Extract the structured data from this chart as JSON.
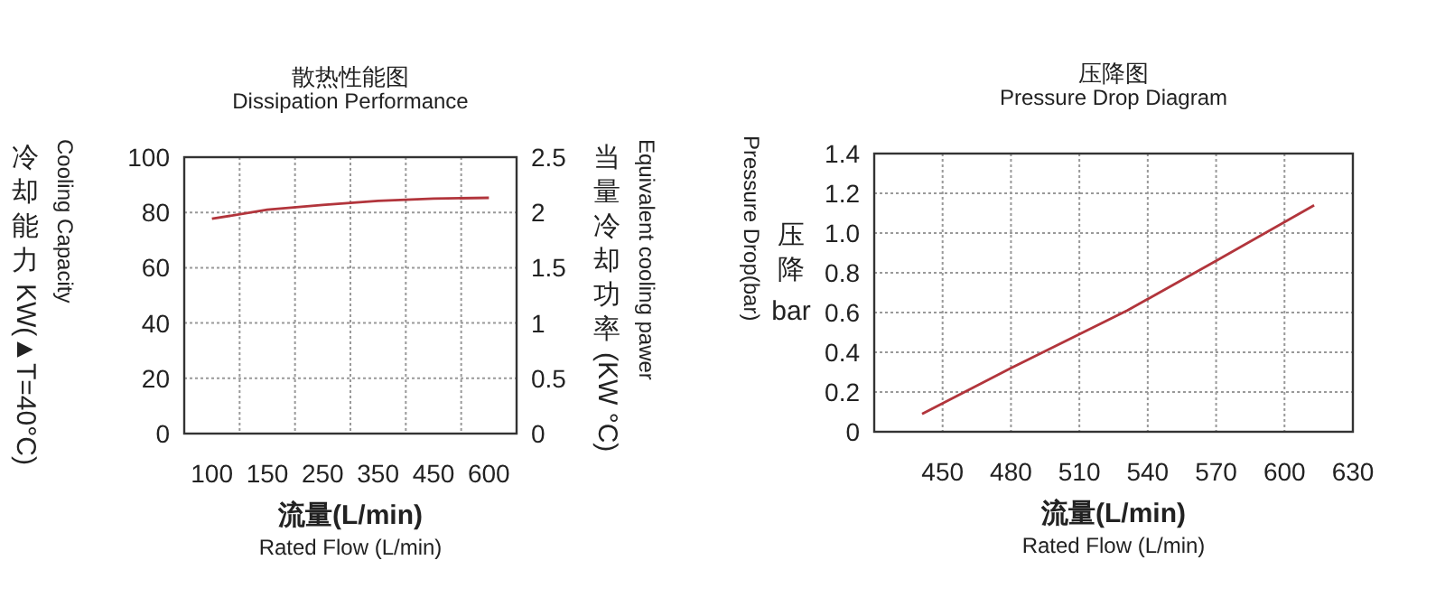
{
  "chart_data": [
    {
      "type": "line",
      "title": "散热性能图",
      "subtitle": "Dissipation Performance",
      "xlabel": "流量(L/min)\nRated Flow (L/min)",
      "ylabel": "冷却能力 KW(▲T=40°C)\nCooling Capacity",
      "y2label": "当量冷却功率 (KW °C)\nEquivalent cooling pawer",
      "categories": [
        "100",
        "150",
        "250",
        "350",
        "450",
        "600"
      ],
      "series": [
        {
          "color": "#b2353c",
          "values": [
            77.7,
            81,
            82.7,
            84.2,
            85,
            85.3
          ]
        }
      ],
      "ylim": [
        0,
        100
      ],
      "yticks": [
        0,
        20,
        40,
        60,
        80,
        100
      ],
      "y2lim": [
        0,
        2.5
      ],
      "y2ticks": [
        0,
        0.5,
        1,
        1.5,
        2,
        2.5
      ],
      "grid": true
    },
    {
      "type": "line",
      "title": "压降图",
      "subtitle": "Pressure Drop Diagram",
      "xlabel": "流量(L/min)\nRated Flow (L/min)",
      "ylabel": "Pressure Drop(bar)\n压降bar",
      "series": [
        {
          "color": "#b2353c",
          "x": [
            441,
            480,
            531,
            570,
            613
          ],
          "values": [
            0.09,
            0.32,
            0.61,
            0.86,
            1.14
          ]
        }
      ],
      "xlim": [
        420,
        630
      ],
      "xticks": [
        450,
        480,
        510,
        540,
        570,
        600,
        630
      ],
      "ylim": [
        0,
        1.4
      ],
      "yticks": [
        0,
        0.2,
        0.4,
        0.6,
        {
          "value": 1,
          "label": "1.0"
        },
        0.8,
        1.2,
        1.4
      ],
      "grid": true
    }
  ]
}
